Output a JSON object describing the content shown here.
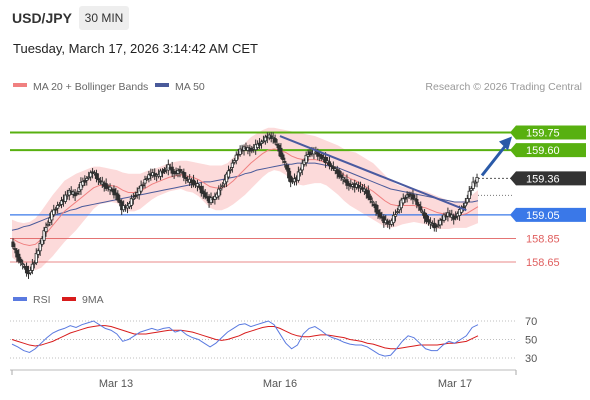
{
  "header": {
    "pair": "USD/JPY",
    "timeframe": "30 MIN",
    "datetime": "Tuesday, March 17, 2026 3:14:42 AM CET"
  },
  "legend": {
    "ma20_label": "MA 20 + Bollinger Bands",
    "ma50_label": "MA 50",
    "credit": "Research © 2026 Trading Central",
    "rsi_label": "RSI",
    "ma9_label": "9MA"
  },
  "colors": {
    "candle": "#2f2f2f",
    "ma20": "#f08080",
    "band_fill": "#fbd4d4",
    "ma50": "#4a5a9a",
    "resistance": "#58b010",
    "support": "#3a78e8",
    "lower_level": "#e06060",
    "current_price": "#333333",
    "trend_line": "#4a5aa0",
    "arrow": "#2a5aa8",
    "rsi": "#5a7ae0",
    "rsi_ma": "#d81c1c"
  },
  "chart_data": {
    "type": "candlestick",
    "symbol": "USD/JPY",
    "interval": "30 MIN",
    "x_tick_labels": [
      "Mar 13",
      "Mar 16",
      "Mar 17"
    ],
    "y_range": [
      158.48,
      160.06
    ],
    "levels": [
      {
        "value": 159.75,
        "label": "159.75",
        "kind": "resistance"
      },
      {
        "value": 159.6,
        "label": "159.60",
        "kind": "resistance"
      },
      {
        "value": 159.36,
        "label": "159.36",
        "kind": "current"
      },
      {
        "value": 159.05,
        "label": "159.05",
        "kind": "support"
      },
      {
        "value": 158.85,
        "label": "158.85",
        "kind": "lower"
      },
      {
        "value": 158.65,
        "label": "158.65",
        "kind": "lower"
      }
    ],
    "price_path": [
      158.82,
      158.7,
      158.62,
      158.55,
      158.66,
      158.8,
      158.95,
      159.06,
      159.13,
      159.18,
      159.25,
      159.22,
      159.31,
      159.36,
      159.42,
      159.34,
      159.3,
      159.27,
      159.22,
      159.11,
      159.12,
      159.2,
      159.26,
      159.35,
      159.4,
      159.38,
      159.42,
      159.46,
      159.4,
      159.43,
      159.35,
      159.33,
      159.3,
      159.23,
      159.17,
      159.2,
      159.28,
      159.38,
      159.49,
      159.58,
      159.62,
      159.6,
      159.63,
      159.67,
      159.72,
      159.7,
      159.6,
      159.48,
      159.33,
      159.36,
      159.48,
      159.57,
      159.59,
      159.55,
      159.51,
      159.46,
      159.41,
      159.35,
      159.3,
      159.3,
      159.28,
      159.24,
      159.15,
      159.06,
      159.0,
      158.97,
      159.06,
      159.16,
      159.22,
      159.2,
      159.12,
      159.03,
      158.97,
      158.95,
      159.02,
      159.06,
      159.02,
      159.08,
      159.15,
      159.29,
      159.36
    ],
    "ma20": [
      158.85,
      158.82,
      158.8,
      158.79,
      158.8,
      158.84,
      158.9,
      158.96,
      159.02,
      159.08,
      159.12,
      159.16,
      159.2,
      159.24,
      159.28,
      159.3,
      159.3,
      159.3,
      159.29,
      159.26,
      159.24,
      159.24,
      159.25,
      159.28,
      159.31,
      159.33,
      159.35,
      159.37,
      159.38,
      159.39,
      159.38,
      159.37,
      159.35,
      159.32,
      159.29,
      159.28,
      159.28,
      159.3,
      159.34,
      159.39,
      159.44,
      159.49,
      159.53,
      159.57,
      159.6,
      159.61,
      159.6,
      159.58,
      159.55,
      159.53,
      159.52,
      159.52,
      159.52,
      159.51,
      159.49,
      159.46,
      159.43,
      159.39,
      159.36,
      159.34,
      159.31,
      159.28,
      159.25,
      159.21,
      159.17,
      159.14,
      159.13,
      159.13,
      159.13,
      159.13,
      159.12,
      159.11,
      159.09,
      159.07,
      159.06,
      159.05,
      159.05,
      159.05,
      159.06,
      159.09,
      159.12
    ],
    "band_width": [
      0.16,
      0.17,
      0.18,
      0.2,
      0.22,
      0.24,
      0.25,
      0.26,
      0.26,
      0.26,
      0.25,
      0.24,
      0.22,
      0.2,
      0.18,
      0.16,
      0.15,
      0.14,
      0.14,
      0.15,
      0.16,
      0.16,
      0.15,
      0.14,
      0.13,
      0.12,
      0.12,
      0.12,
      0.12,
      0.12,
      0.13,
      0.13,
      0.14,
      0.16,
      0.18,
      0.19,
      0.19,
      0.19,
      0.2,
      0.21,
      0.22,
      0.22,
      0.21,
      0.2,
      0.19,
      0.18,
      0.18,
      0.19,
      0.21,
      0.22,
      0.22,
      0.21,
      0.2,
      0.19,
      0.19,
      0.2,
      0.21,
      0.22,
      0.23,
      0.24,
      0.24,
      0.24,
      0.24,
      0.23,
      0.22,
      0.2,
      0.18,
      0.16,
      0.15,
      0.14,
      0.14,
      0.14,
      0.14,
      0.14,
      0.13,
      0.12,
      0.11,
      0.11,
      0.12,
      0.13,
      0.14
    ],
    "ma50": [
      158.92,
      158.93,
      158.95,
      158.96,
      158.98,
      159.0,
      159.02,
      159.04,
      159.06,
      159.07,
      159.09,
      159.1,
      159.12,
      159.13,
      159.14,
      159.15,
      159.16,
      159.17,
      159.18,
      159.19,
      159.2,
      159.21,
      159.22,
      159.23,
      159.24,
      159.25,
      159.26,
      159.27,
      159.28,
      159.29,
      159.3,
      159.31,
      159.32,
      159.33,
      159.33,
      159.34,
      159.35,
      159.36,
      159.37,
      159.38,
      159.4,
      159.41,
      159.43,
      159.44,
      159.45,
      159.46,
      159.47,
      159.48,
      159.48,
      159.49,
      159.49,
      159.49,
      159.49,
      159.48,
      159.47,
      159.46,
      159.45,
      159.43,
      159.41,
      159.39,
      159.37,
      159.35,
      159.33,
      159.31,
      159.29,
      159.27,
      159.26,
      159.25,
      159.24,
      159.23,
      159.22,
      159.21,
      159.2,
      159.19,
      159.18,
      159.17,
      159.16,
      159.16,
      159.16,
      159.16,
      159.17
    ],
    "trend_line": {
      "from_index": 46,
      "from_value": 159.72,
      "to_index": 78,
      "to_value": 159.09
    },
    "rsi": {
      "ticks": [
        70,
        50,
        30
      ],
      "range": [
        20,
        80
      ],
      "rsi": [
        45,
        42,
        38,
        36,
        40,
        46,
        52,
        57,
        60,
        62,
        65,
        63,
        66,
        68,
        70,
        66,
        62,
        60,
        56,
        48,
        50,
        54,
        58,
        60,
        62,
        60,
        62,
        63,
        58,
        60,
        55,
        52,
        50,
        46,
        42,
        46,
        52,
        58,
        62,
        66,
        67,
        64,
        66,
        68,
        70,
        66,
        56,
        46,
        40,
        44,
        56,
        62,
        64,
        60,
        55,
        52,
        50,
        47,
        45,
        44,
        44,
        42,
        38,
        34,
        32,
        33,
        40,
        48,
        54,
        52,
        46,
        40,
        38,
        38,
        44,
        48,
        46,
        50,
        54,
        63,
        66
      ],
      "ma9": [
        50,
        48,
        46,
        44,
        43,
        44,
        46,
        48,
        51,
        54,
        57,
        59,
        61,
        63,
        64,
        65,
        65,
        64,
        62,
        60,
        58,
        56,
        56,
        56,
        57,
        58,
        59,
        60,
        60,
        60,
        59,
        58,
        56,
        54,
        52,
        50,
        49,
        50,
        52,
        54,
        57,
        59,
        61,
        63,
        64,
        64,
        62,
        59,
        56,
        54,
        53,
        53,
        54,
        55,
        55,
        54,
        53,
        52,
        50,
        49,
        48,
        46,
        45,
        43,
        41,
        40,
        40,
        41,
        42,
        43,
        44,
        44,
        44,
        44,
        45,
        46,
        46,
        47,
        48,
        51,
        54
      ]
    }
  }
}
